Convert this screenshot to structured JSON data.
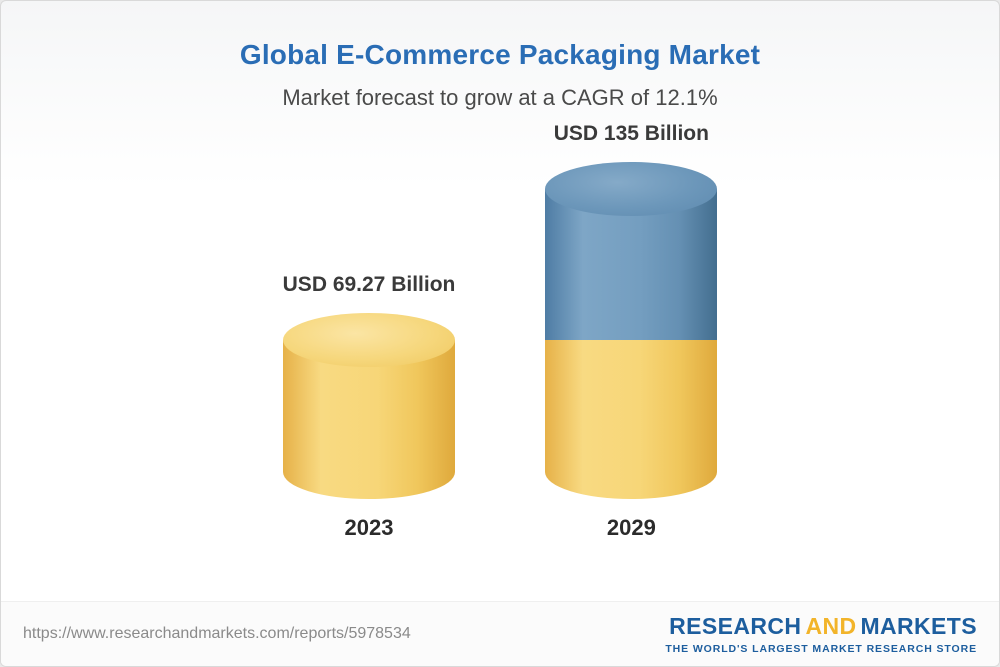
{
  "header": {
    "title": "Global E-Commerce Packaging Market",
    "subtitle": "Market forecast to grow at a CAGR of 12.1%"
  },
  "chart_data": {
    "type": "bar",
    "categories": [
      "2023",
      "2029"
    ],
    "values": [
      69.27,
      135
    ],
    "value_labels": [
      "USD 69.27 Billion",
      "USD 135 Billion"
    ],
    "title": "Global E-Commerce Packaging Market",
    "subtitle": "Market forecast to grow at a CAGR of 12.1%",
    "unit": "USD Billion",
    "cagr_percent": 12.1,
    "ylim": [
      0,
      150
    ],
    "bar_style": "3d-cylinder",
    "bar_colors": [
      "#f2c95d",
      "#5d89ae"
    ],
    "note": "2029 cylinder shows the 2023 base value in yellow with the growth portion (135 - 69.27) in blue on top"
  },
  "footer": {
    "url": "https://www.researchandmarkets.com/reports/5978534",
    "logo": {
      "research": "RESEARCH",
      "and": "AND",
      "markets": "MARKETS",
      "tagline": "THE WORLD'S LARGEST MARKET RESEARCH STORE"
    }
  },
  "colors": {
    "title_blue": "#2a6db5",
    "subtitle_gray": "#4a4a4a",
    "yellow_bar": "#f2c95d",
    "blue_bar": "#5d89ae",
    "logo_blue": "#1d5e9e",
    "logo_gold": "#f2b42a"
  }
}
